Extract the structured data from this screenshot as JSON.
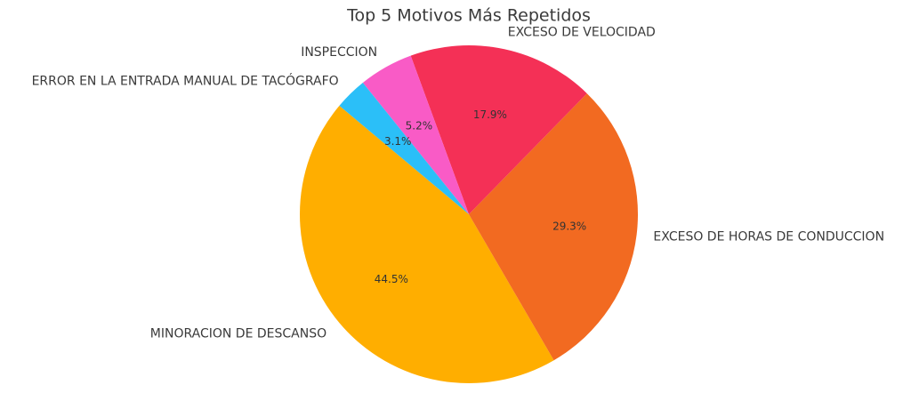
{
  "chart_data": {
    "type": "pie",
    "title": "Top 5 Motivos Más Repetidos",
    "categories": [
      "MINORACION DE DESCANSO",
      "EXCESO DE HORAS DE CONDUCCION",
      "EXCESO DE VELOCIDAD",
      "INSPECCION",
      "ERROR EN LA ENTRADA MANUAL DE TACÓGRAFO"
    ],
    "values": [
      44.5,
      29.3,
      17.9,
      5.2,
      3.1
    ],
    "value_labels": [
      "44.5%",
      "29.3%",
      "17.9%",
      "5.2%",
      "3.1%"
    ],
    "colors": [
      "#ffae00",
      "#f26a21",
      "#f43056",
      "#f95bc6",
      "#2bbff8"
    ]
  }
}
